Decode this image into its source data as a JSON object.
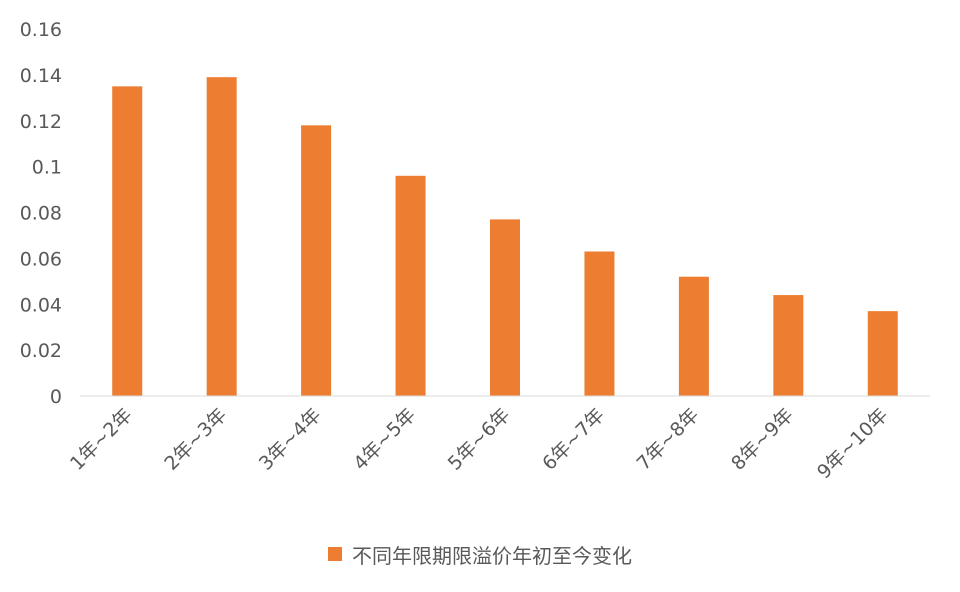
{
  "chart_data": {
    "type": "bar",
    "categories": [
      "1年~2年",
      "2年~3年",
      "3年~4年",
      "4年~5年",
      "5年~6年",
      "6年~7年",
      "7年~8年",
      "8年~9年",
      "9年~10年"
    ],
    "series": [
      {
        "name": "不同年限期限溢价年初至今变化",
        "values": [
          0.135,
          0.139,
          0.118,
          0.096,
          0.077,
          0.063,
          0.052,
          0.044,
          0.037
        ],
        "color": "#ED7D31"
      }
    ],
    "yticks": [
      "0",
      "0.02",
      "0.04",
      "0.06",
      "0.08",
      "0.1",
      "0.12",
      "0.14",
      "0.16"
    ],
    "ylim": [
      0,
      0.16
    ],
    "grid": false,
    "legend_position": "bottom"
  },
  "colors": {
    "axis": "#D9D9D9",
    "text": "#595959"
  }
}
